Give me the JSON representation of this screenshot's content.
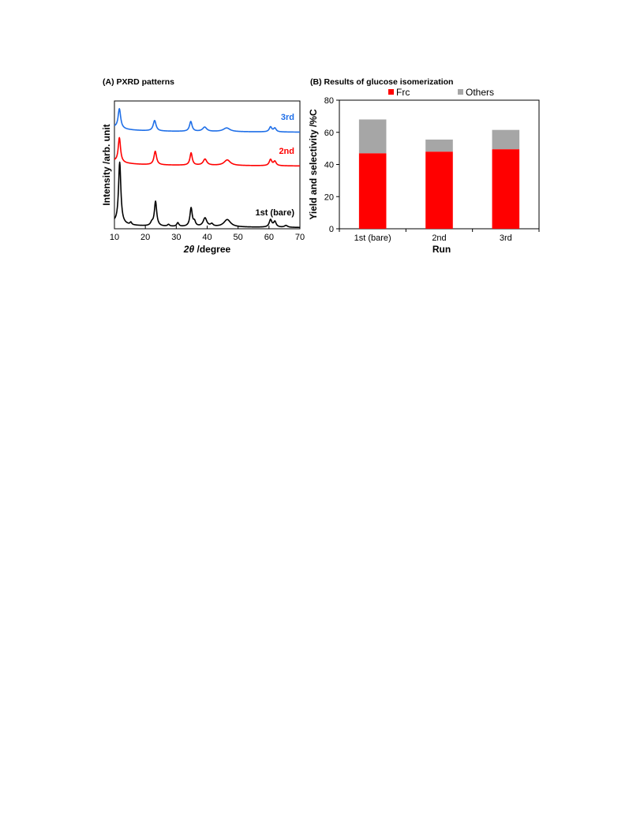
{
  "chart_data": [
    {
      "type": "line",
      "title": "(A) PXRD patterns",
      "xlabel_symbol": "2θ",
      "xlabel_unit": "/degree",
      "ylabel": "Intensity /arb. unit",
      "xlim": [
        10,
        70
      ],
      "xticks": [
        10,
        20,
        30,
        40,
        50,
        60,
        70
      ],
      "yticks_shown": false,
      "grid": false,
      "series": [
        {
          "name": "1st (bare)",
          "color": "#000000",
          "baseline": 0,
          "peaks": [
            {
              "x": 11.7,
              "h": 100,
              "w": 0.45
            },
            {
              "x": 15.3,
              "h": 4,
              "w": 0.3
            },
            {
              "x": 22.1,
              "h": 5,
              "w": 0.5
            },
            {
              "x": 23.3,
              "h": 40,
              "w": 0.45
            },
            {
              "x": 27.5,
              "h": 3,
              "w": 0.4
            },
            {
              "x": 30.5,
              "h": 6,
              "w": 0.4
            },
            {
              "x": 34.8,
              "h": 30,
              "w": 0.45
            },
            {
              "x": 35.9,
              "h": 7,
              "w": 0.4
            },
            {
              "x": 39.3,
              "h": 14,
              "w": 0.7
            },
            {
              "x": 41.5,
              "h": 4,
              "w": 0.5
            },
            {
              "x": 46.5,
              "h": 12,
              "w": 1.3
            },
            {
              "x": 60.5,
              "h": 12,
              "w": 0.5
            },
            {
              "x": 61.9,
              "h": 9,
              "w": 0.5
            },
            {
              "x": 65.5,
              "h": 3,
              "w": 0.6
            }
          ]
        },
        {
          "name": "2nd",
          "color": "#ff0000",
          "baseline": 100,
          "peaks": [
            {
              "x": 11.6,
              "h": 40,
              "w": 0.45
            },
            {
              "x": 23.2,
              "h": 22,
              "w": 0.5
            },
            {
              "x": 34.8,
              "h": 20,
              "w": 0.45
            },
            {
              "x": 39.3,
              "h": 10,
              "w": 0.7
            },
            {
              "x": 46.5,
              "h": 9,
              "w": 1.2
            },
            {
              "x": 60.5,
              "h": 10,
              "w": 0.5
            },
            {
              "x": 61.9,
              "h": 7,
              "w": 0.5
            }
          ]
        },
        {
          "name": "3rd",
          "color": "#1f6fe8",
          "baseline": 155,
          "peaks": [
            {
              "x": 11.6,
              "h": 32,
              "w": 0.5
            },
            {
              "x": 23.0,
              "h": 17,
              "w": 0.55
            },
            {
              "x": 34.7,
              "h": 16,
              "w": 0.5
            },
            {
              "x": 39.2,
              "h": 7,
              "w": 0.8
            },
            {
              "x": 46.3,
              "h": 6,
              "w": 1.3
            },
            {
              "x": 60.5,
              "h": 8,
              "w": 0.5
            },
            {
              "x": 61.9,
              "h": 6,
              "w": 0.5
            }
          ]
        }
      ]
    },
    {
      "type": "bar",
      "stacked": true,
      "title": "(B) Results of glucose isomerization",
      "xlabel": "Run",
      "ylabel": "Yield and selectivity /%C",
      "ylim": [
        0,
        80
      ],
      "yticks": [
        0,
        20,
        40,
        60,
        80
      ],
      "categories": [
        "1st (bare)",
        "2nd",
        "3rd"
      ],
      "legend_position": "top",
      "grid": false,
      "series": [
        {
          "name": "Frc",
          "color": "#ff0000",
          "values": [
            47,
            48,
            49.5
          ]
        },
        {
          "name": "Others",
          "color": "#a6a6a6",
          "values": [
            21,
            7.5,
            12
          ]
        }
      ]
    }
  ]
}
